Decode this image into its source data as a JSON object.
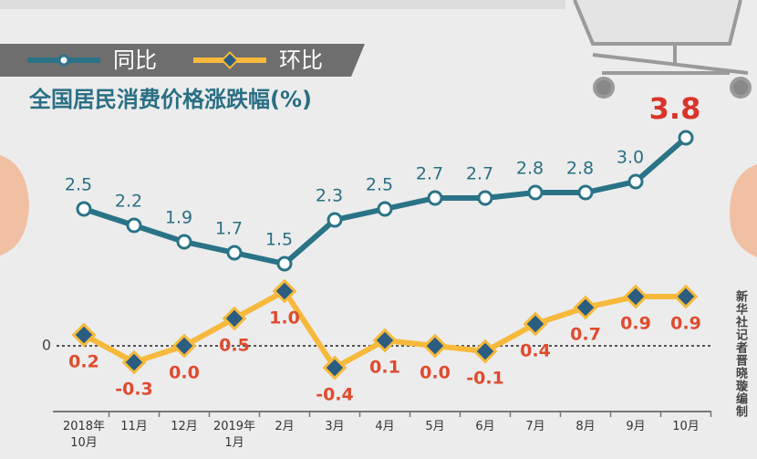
{
  "chart_data": {
    "type": "line",
    "title": "全国居民消费价格涨跌幅(%)",
    "source": "新华社记者晋晓璇编制",
    "categories": [
      "2018年\n10月",
      "11月",
      "12月",
      "2019年\n1月",
      "2月",
      "3月",
      "4月",
      "5月",
      "6月",
      "7月",
      "8月",
      "9月",
      "10月"
    ],
    "series": [
      {
        "name": "同比",
        "color": "#2a7387",
        "values": [
          2.5,
          2.2,
          1.9,
          1.7,
          1.5,
          2.3,
          2.5,
          2.7,
          2.7,
          2.8,
          2.8,
          3.0,
          3.8
        ],
        "value_labels": [
          "2.5",
          "2.2",
          "1.9",
          "1.7",
          "1.5",
          "2.3",
          "2.5",
          "2.7",
          "2.7",
          "2.8",
          "2.8",
          "3.0",
          "3.8"
        ]
      },
      {
        "name": "环比",
        "color": "#f6b93b",
        "values": [
          0.2,
          -0.3,
          0.0,
          0.5,
          1.0,
          -0.4,
          0.1,
          0.0,
          -0.1,
          0.4,
          0.7,
          0.9,
          0.9
        ],
        "value_labels": [
          "0.2",
          "-0.3",
          "0.0",
          "0.5",
          "1.0",
          "-0.4",
          "0.1",
          "0.0",
          "-0.1",
          "0.4",
          "0.7",
          "0.9",
          "0.9"
        ]
      }
    ],
    "ylim": [
      -1.2,
      4.7
    ],
    "yticks": [
      0
    ]
  }
}
